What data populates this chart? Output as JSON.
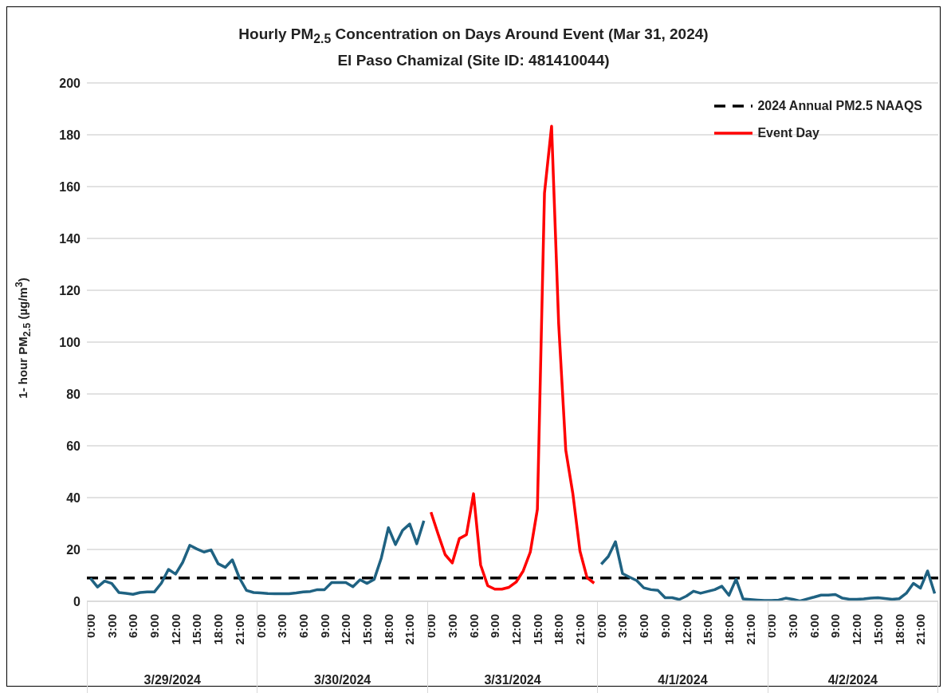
{
  "chart_data": {
    "type": "line",
    "title": "Hourly PM$_{2.5}$ Concentration on Days Around Event (Mar 31, 2024)",
    "subtitle": "El Paso Chamizal (Site ID: 481410044)",
    "ylabel": "1- hour PM$_{2.5}$  (µg/m$^{3}$)",
    "categories": [
      "0:00",
      null,
      null,
      "3:00",
      null,
      null,
      "6:00",
      null,
      null,
      "9:00",
      null,
      null,
      "12:00",
      null,
      null,
      "15:00",
      null,
      null,
      "18:00",
      null,
      null,
      "21:00",
      null,
      null,
      "0:00",
      null,
      null,
      "3:00",
      null,
      null,
      "6:00",
      null,
      null,
      "9:00",
      null,
      null,
      "12:00",
      null,
      null,
      "15:00",
      null,
      null,
      "18:00",
      null,
      null,
      "21:00",
      null,
      null,
      "0:00",
      null,
      null,
      "3:00",
      null,
      null,
      "6:00",
      null,
      null,
      "9:00",
      null,
      null,
      "12:00",
      null,
      null,
      "15:00",
      null,
      null,
      "18:00",
      null,
      null,
      "21:00",
      null,
      null,
      "0:00",
      null,
      null,
      "3:00",
      null,
      null,
      "6:00",
      null,
      null,
      "9:00",
      null,
      null,
      "12:00",
      null,
      null,
      "15:00",
      null,
      null,
      "18:00",
      null,
      null,
      "21:00",
      null,
      null,
      "0:00",
      null,
      null,
      "3:00",
      null,
      null,
      "6:00",
      null,
      null,
      "9:00",
      null,
      null,
      "12:00",
      null,
      null,
      "15:00",
      null,
      null,
      "18:00",
      null,
      null,
      "21:00",
      null,
      null
    ],
    "series": [
      {
        "color": "#1f6282",
        "values": [
          8.9,
          5.5,
          7.8,
          6.9,
          3.4,
          3.1,
          2.7,
          3.4,
          3.6,
          3.6,
          7,
          12.3,
          10.5,
          15,
          21.6,
          20.2,
          19,
          19.8,
          14.5,
          13.1,
          16,
          9,
          4.2,
          3.4,
          3.2,
          3,
          2.9,
          2.9,
          2.9,
          3.2,
          3.6,
          3.8,
          4.5,
          4.5,
          7.2,
          7.2,
          7.2,
          5.6,
          8.3,
          6.9,
          8.5,
          16.7,
          28.4,
          21.9,
          27.4,
          29.8,
          22.2,
          31.1,
          null,
          null,
          null,
          null,
          null,
          null,
          null,
          null,
          null,
          null,
          null,
          null,
          null,
          null,
          null,
          null,
          null,
          null,
          null,
          null,
          null,
          null,
          null,
          null,
          14.3,
          17.3,
          23,
          10.7,
          9.3,
          8,
          5.2,
          4.5,
          4.2,
          1.4,
          1.4,
          0.7,
          2,
          3.9,
          3.1,
          3.8,
          4.5,
          5.8,
          2.3,
          8.5,
          0.9,
          0.7,
          0.5,
          0.3,
          0.3,
          0.5,
          1.2,
          0.8,
          0.1,
          0.9,
          1.6,
          2.4,
          2.4,
          2.6,
          1.2,
          0.8,
          0.8,
          0.9,
          1.2,
          1.4,
          1.1,
          0.8,
          1,
          3.1,
          6.9,
          5.1,
          11.7,
          3
        ]
      },
      {
        "name": "Event Day",
        "color": "#ff0000",
        "values": [
          null,
          null,
          null,
          null,
          null,
          null,
          null,
          null,
          null,
          null,
          null,
          null,
          null,
          null,
          null,
          null,
          null,
          null,
          null,
          null,
          null,
          null,
          null,
          null,
          null,
          null,
          null,
          null,
          null,
          null,
          null,
          null,
          null,
          null,
          null,
          null,
          null,
          null,
          null,
          null,
          null,
          null,
          null,
          null,
          null,
          null,
          null,
          null,
          34.4,
          26,
          18,
          14.8,
          24.2,
          25.7,
          41.5,
          14,
          6,
          4.7,
          4.7,
          5.4,
          7.4,
          11.7,
          19,
          35.5,
          157.5,
          183.3,
          107,
          58.3,
          41.5,
          19.4,
          9.1,
          7,
          null,
          null,
          null,
          null,
          null,
          null,
          null,
          null,
          null,
          null,
          null,
          null,
          null,
          null,
          null,
          null,
          null,
          null,
          null,
          null,
          null,
          null,
          null,
          null,
          null,
          null,
          null,
          null,
          null,
          null,
          null,
          null,
          null,
          null,
          null,
          null,
          null,
          null,
          null,
          null,
          null,
          null,
          null,
          null,
          null,
          null,
          null,
          null
        ]
      }
    ],
    "annotations": [
      "3/29/2024",
      "3/30/2024",
      "3/31/2024",
      "4/1/2024",
      "4/2/2024"
    ],
    "ref_lines": [
      {
        "axis": "y",
        "value": 9,
        "label": "2024 Annual PM2.5 NAAQS",
        "color": "#000000",
        "line_style": "dashed"
      }
    ],
    "ylim": [
      0,
      200
    ],
    "yticks": [
      0,
      20,
      40,
      60,
      80,
      100,
      120,
      140,
      160,
      180,
      200
    ],
    "grid": "y",
    "legend": "top right",
    "line_style": "solid",
    "marker": "none"
  }
}
